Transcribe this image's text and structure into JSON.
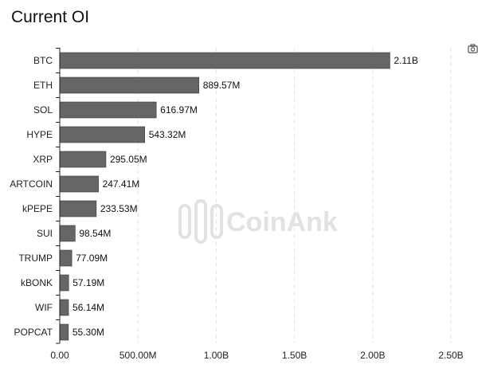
{
  "page": {
    "title": "Current OI"
  },
  "watermark": {
    "text": "CoinAnk"
  },
  "icons": {
    "toolbox": "camera-icon"
  },
  "chart_data": {
    "type": "bar",
    "orientation": "horizontal",
    "title": "Current OI",
    "xlabel": "",
    "ylabel": "",
    "xlim": [
      0,
      2500000000
    ],
    "x_tick_values": [
      0,
      500000000,
      1000000000,
      1500000000,
      2000000000,
      2500000000
    ],
    "x_tick_labels": [
      "0.00",
      "500.00M",
      "1.00B",
      "1.50B",
      "2.00B",
      "2.50B"
    ],
    "grid": "vertical dashed",
    "bar_color": "#666666",
    "categories": [
      "BTC",
      "ETH",
      "SOL",
      "HYPE",
      "XRP",
      "ARTCOIN",
      "kPEPE",
      "SUI",
      "TRUMP",
      "kBONK",
      "WIF",
      "POPCAT"
    ],
    "values": [
      2110000000,
      889570000,
      616970000,
      543320000,
      295050000,
      247410000,
      233530000,
      98540000,
      77090000,
      57190000,
      56140000,
      55300000
    ],
    "data_labels": [
      "2.11B",
      "889.57M",
      "616.97M",
      "543.32M",
      "295.05M",
      "247.41M",
      "233.53M",
      "98.54M",
      "77.09M",
      "57.19M",
      "56.14M",
      "55.30M"
    ]
  }
}
